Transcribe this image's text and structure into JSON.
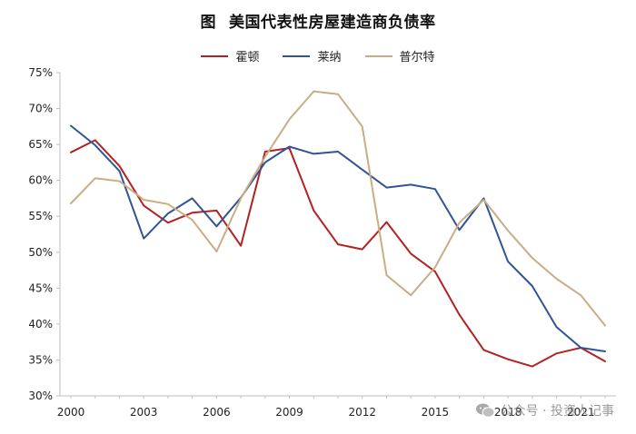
{
  "title_label": "图",
  "title_text": "美国代表性房屋建造商负债率",
  "watermark": "公众号 · 投资人记事",
  "colors": {
    "hovnanian": "#b22222",
    "lennar": "#2f5597",
    "pulte": "#c9ad85",
    "axis": "#666666"
  },
  "chart_data": {
    "type": "line",
    "title": "美国代表性房屋建造商负债率",
    "xlabel": "",
    "ylabel": "",
    "x": [
      2000,
      2001,
      2002,
      2003,
      2004,
      2005,
      2006,
      2007,
      2008,
      2009,
      2010,
      2011,
      2012,
      2013,
      2014,
      2015,
      2016,
      2017,
      2018,
      2019,
      2020,
      2021,
      2022
    ],
    "x_tick_labels": [
      "2000",
      "2003",
      "2006",
      "2009",
      "2012",
      "2015",
      "2018",
      "2021"
    ],
    "x_tick_values": [
      2000,
      2003,
      2006,
      2009,
      2012,
      2015,
      2018,
      2021
    ],
    "ylim": [
      30,
      75
    ],
    "y_ticks": [
      30,
      35,
      40,
      45,
      50,
      55,
      60,
      65,
      70,
      75
    ],
    "y_tick_labels": [
      "30%",
      "35%",
      "40%",
      "45%",
      "50%",
      "55%",
      "60%",
      "65%",
      "70%",
      "75%"
    ],
    "legend": "top-center",
    "grid": false,
    "series": [
      {
        "name": "霍顿",
        "key": "hovnanian",
        "values": [
          63.9,
          65.6,
          62.0,
          56.5,
          54.1,
          55.5,
          55.8,
          50.9,
          64.0,
          64.5,
          55.8,
          51.1,
          50.4,
          54.2,
          49.8,
          47.3,
          41.3,
          36.4,
          35.1,
          34.1,
          35.9,
          36.7,
          34.8
        ]
      },
      {
        "name": "莱纳",
        "key": "lennar",
        "values": [
          67.6,
          64.9,
          61.3,
          51.9,
          55.4,
          57.5,
          53.6,
          57.6,
          62.5,
          64.7,
          63.7,
          64.0,
          61.5,
          59.0,
          59.4,
          58.8,
          53.1,
          57.5,
          48.7,
          45.3,
          39.6,
          36.7,
          36.2
        ]
      },
      {
        "name": "普尔特",
        "key": "pulte",
        "values": [
          56.8,
          60.3,
          59.9,
          57.3,
          56.7,
          54.5,
          50.1,
          57.5,
          63.3,
          68.5,
          72.4,
          72.0,
          67.5,
          46.8,
          44.0,
          47.9,
          54.1,
          57.3,
          53.0,
          49.2,
          46.3,
          44.0,
          39.8
        ]
      }
    ]
  }
}
